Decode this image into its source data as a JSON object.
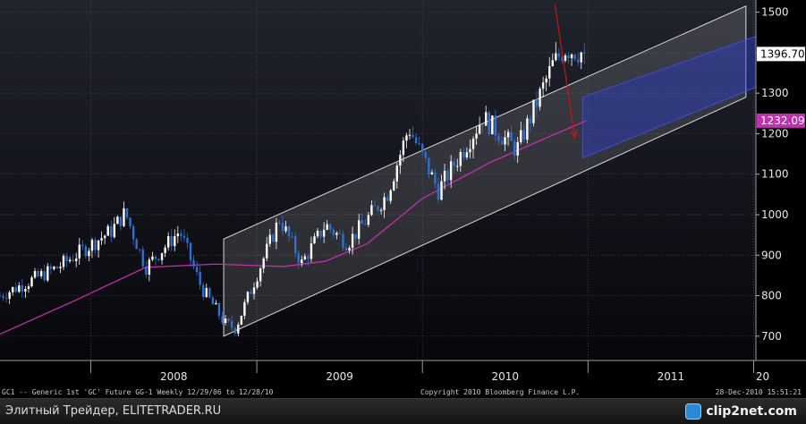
{
  "chart_data": {
    "type": "candlestick",
    "title": "",
    "xlabel": "",
    "ylabel": "",
    "ylim": [
      640,
      1530
    ],
    "xlim": [
      "2007-06-15",
      "2012-01-06"
    ],
    "x_ticks": [
      "2008",
      "2009",
      "2010",
      "2011",
      "20"
    ],
    "x_tick_dates": [
      "2008-01-01",
      "2009-01-01",
      "2010-01-01",
      "2011-01-01",
      "2012-01-01"
    ],
    "y_ticks": [
      700,
      800,
      900,
      1000,
      1100,
      1200,
      1300,
      1400,
      1500
    ],
    "y_tick_labels": [
      "700",
      "800",
      "900",
      "1000",
      "1100",
      "1200",
      "1300",
      "1400",
      "1500"
    ],
    "last_price_label": "1396.70",
    "last_price_value": 1396.7,
    "ma_label": "1232.09",
    "ma_value": 1232.09,
    "grid": true,
    "legend": "none",
    "price_anchors": [
      {
        "date": "2007-06-15",
        "close": 800
      },
      {
        "date": "2007-10-20",
        "close": 870
      },
      {
        "date": "2008-02-15",
        "close": 960
      },
      {
        "date": "2008-03-17",
        "close": 1005
      },
      {
        "date": "2008-05-01",
        "close": 870
      },
      {
        "date": "2008-07-15",
        "close": 960
      },
      {
        "date": "2008-09-01",
        "close": 820
      },
      {
        "date": "2008-10-24",
        "close": 730
      },
      {
        "date": "2008-11-15",
        "close": 720
      },
      {
        "date": "2009-02-20",
        "close": 990
      },
      {
        "date": "2009-04-10",
        "close": 880
      },
      {
        "date": "2009-06-01",
        "close": 975
      },
      {
        "date": "2009-07-20",
        "close": 930
      },
      {
        "date": "2009-10-15",
        "close": 1050
      },
      {
        "date": "2009-12-02",
        "close": 1215
      },
      {
        "date": "2010-02-05",
        "close": 1060
      },
      {
        "date": "2010-05-14",
        "close": 1240
      },
      {
        "date": "2010-07-28",
        "close": 1160
      },
      {
        "date": "2010-10-15",
        "close": 1370
      },
      {
        "date": "2010-11-10",
        "close": 1410
      },
      {
        "date": "2010-12-28",
        "close": 1396.7
      }
    ],
    "moving_average": [
      {
        "date": "2007-06-15",
        "value": 705
      },
      {
        "date": "2007-12-01",
        "value": 790
      },
      {
        "date": "2008-05-01",
        "value": 870
      },
      {
        "date": "2008-10-01",
        "value": 878
      },
      {
        "date": "2009-03-01",
        "value": 872
      },
      {
        "date": "2009-06-01",
        "value": 885
      },
      {
        "date": "2009-09-01",
        "value": 928
      },
      {
        "date": "2010-01-01",
        "value": 1040
      },
      {
        "date": "2010-06-01",
        "value": 1130
      },
      {
        "date": "2010-12-28",
        "value": 1232
      }
    ],
    "channel": {
      "start": "2008-10-20",
      "end": "2011-12-15",
      "upper_start": 940,
      "upper_end": 1515,
      "lower_start": 700,
      "lower_end": 1290
    },
    "forecast_box": [
      {
        "date": "2010-12-20",
        "value": 1290
      },
      {
        "date": "2012-01-06",
        "value": 1440
      },
      {
        "date": "2012-01-06",
        "value": 1315
      },
      {
        "date": "2010-12-20",
        "value": 1140
      }
    ],
    "arrow": {
      "from_date": "2010-10-20",
      "from_value": 1520,
      "to_date": "2010-12-03",
      "to_value": 1190
    },
    "colors": {
      "background": "#000000",
      "plot_top": "#21232d",
      "plot_bottom": "#07070b",
      "grid": "#4a4d58",
      "up_candle": "#ffffff",
      "down_candle": "#2e6fd0",
      "moving_average": "#c22fb0",
      "channel_fill": "#ffffff",
      "forecast_box": "#2b3cc8",
      "arrow": "#c41818",
      "last_price_box": "#ffffff",
      "ma_box": "#c22fb0"
    }
  },
  "status_bar": {
    "left": "GC1 -- Generic 1st 'GC' Future      GG-1  Weekly  12/29/06 to 12/28/10",
    "center": "Copyright 2010 Bloomberg Finance L.P.",
    "right": "28-Dec-2010 15:51:21"
  },
  "footer": {
    "caption": "Элитный Трейдер, ELITETRADER.RU",
    "logo": "clip2net.com"
  }
}
